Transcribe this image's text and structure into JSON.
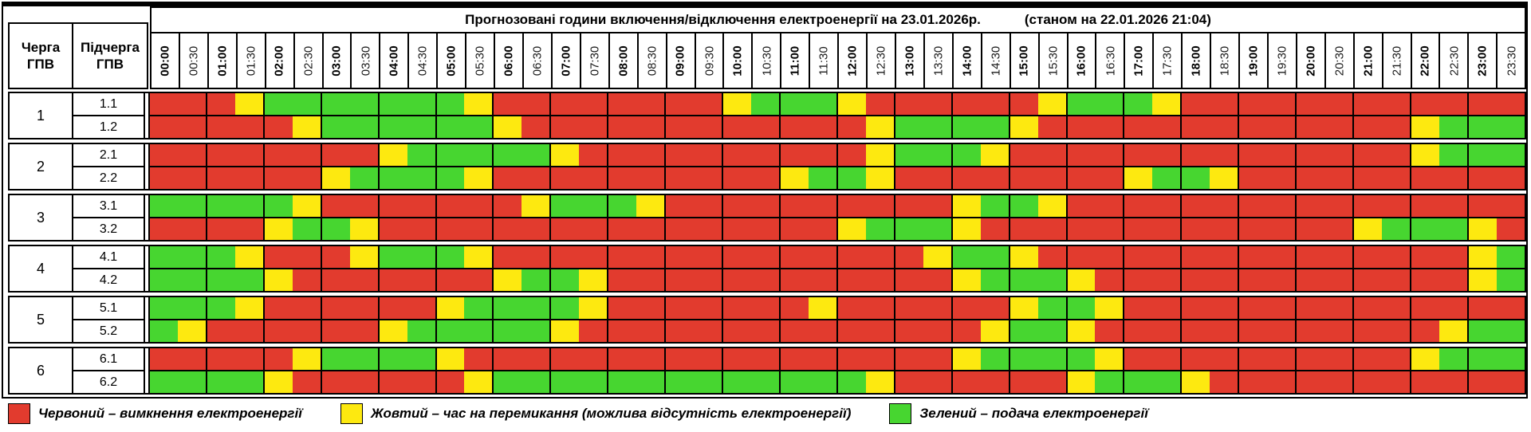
{
  "colors": {
    "R": "#e23b2e",
    "Y": "#fde910",
    "G": "#47d630"
  },
  "header": {
    "queue_col": "Черга\nГПВ",
    "subqueue_col": "Підчерга\nГПВ",
    "title": "Прогнозовані години включення/відключення електроенергії на 23.01.2026р.",
    "title_suffix": "(станом на 22.01.2026 21:04)",
    "time_labels": [
      "00:00",
      "00:30",
      "01:00",
      "01:30",
      "02:00",
      "02:30",
      "03:00",
      "03:30",
      "04:00",
      "04:30",
      "05:00",
      "05:30",
      "06:00",
      "06:30",
      "07:00",
      "07:30",
      "08:00",
      "08:30",
      "09:00",
      "09:30",
      "10:00",
      "10:30",
      "11:00",
      "11:30",
      "12:00",
      "12:30",
      "13:00",
      "13:30",
      "14:00",
      "14:30",
      "15:00",
      "15:30",
      "16:00",
      "16:30",
      "17:00",
      "17:30",
      "18:00",
      "18:30",
      "19:00",
      "19:30",
      "20:00",
      "20:30",
      "21:00",
      "21:30",
      "22:00",
      "22:30",
      "23:00",
      "23:30"
    ]
  },
  "groups": [
    {
      "queue": "1",
      "rows": [
        {
          "label": "1.1",
          "slots": "RRRYGGGGGGGYRRRRRRRRYGGGYRRRRRRYGGGYRRRRRRRRRRRR"
        },
        {
          "label": "1.2",
          "slots": "RRRRRYGGGGGGYRRRRRRRRRRRRYGGGGYRRRRRRRRRRRRRYGGG"
        }
      ]
    },
    {
      "queue": "2",
      "rows": [
        {
          "label": "2.1",
          "slots": "RRRRRRRRYGGGGGYRRRRRRRRRRYGGGYRRRRRRRRRRRRRRYGGG"
        },
        {
          "label": "2.2",
          "slots": "RRRRRRYGGGGYRRRRRRRRRRYGGYRRRRRRRRYGGYRRRRRRRRRR"
        }
      ]
    },
    {
      "queue": "3",
      "rows": [
        {
          "label": "3.1",
          "slots": "GGGGGYRRRRRRRYGGGYRRRRRRRRRRYGGYRRRRRRRRRRRRRRRR"
        },
        {
          "label": "3.2",
          "slots": "RRRRYGGYRRRRRRRRRRRRRRRRYGGGYRRRRRRRRRRRRRYGGGYR"
        }
      ]
    },
    {
      "queue": "4",
      "rows": [
        {
          "label": "4.1",
          "slots": "GGGYRRRYGGGYRRRRRRRRRRRRRRRYGGYRRRRRRRRRRRRRRRYG"
        },
        {
          "label": "4.2",
          "slots": "GGGGYRRRRRRRYGGYRRRRRRRRRRRRYGGGYRRRRRRRRRRRRRYG"
        }
      ]
    },
    {
      "queue": "5",
      "rows": [
        {
          "label": "5.1",
          "slots": "GGGYRRRRRRYGGGGYRRRRRRRYRRRRRRYGGYRRRRRRRRRRRRRR"
        },
        {
          "label": "5.2",
          "slots": "GYRRRRRRYGGGGGYRRRRRRRRRRRRRRYGGYRRRRRRRRRRRRYGG"
        }
      ]
    },
    {
      "queue": "6",
      "rows": [
        {
          "label": "6.1",
          "slots": "RRRRRYGGGGYRRRRRRRRRRRRRRRRRYGGGGYRRRRRRRRRRYGGG"
        },
        {
          "label": "6.2",
          "slots": "GGGGYRRRRRRYGGGGGGGGGGGGGYRRRRRRYGGGYRRRRRRRRRRR"
        }
      ]
    }
  ],
  "legend": [
    {
      "color": "#e23b2e",
      "label": "Червоний – вимкнення електроенергії"
    },
    {
      "color": "#fde910",
      "label": "Жовтий – час на перемикання (можлива відсутність електроенергії)"
    },
    {
      "color": "#47d630",
      "label": "Зелений – подача електроенергії"
    }
  ]
}
